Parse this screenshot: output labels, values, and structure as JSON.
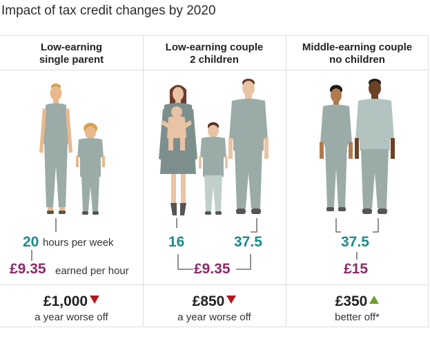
{
  "title": "Impact of tax credit changes by 2020",
  "columns": [
    {
      "header_line1": "Low-earning",
      "header_line2": "single parent",
      "hours_value": "20",
      "hours_label": "hours per week",
      "wage_value": "£9.35",
      "wage_label": "earned per hour",
      "amount": "£1,000",
      "direction": "down",
      "result_label": "a year worse off"
    },
    {
      "header_line1": "Low-earning couple",
      "header_line2": "2 children",
      "hours_value_a": "16",
      "hours_value_b": "37.5",
      "wage_value": "£9.35",
      "amount": "£850",
      "direction": "down",
      "result_label": "a year worse off"
    },
    {
      "header_line1": "Middle-earning couple",
      "header_line2": "no children",
      "hours_value": "37.5",
      "wage_value": "£15",
      "amount": "£350",
      "direction": "up",
      "result_label": "better off*"
    }
  ],
  "colors": {
    "hours": "#1a8a8a",
    "wage": "#8c2a66",
    "worse": "#b3191c",
    "better": "#6aa22a"
  }
}
